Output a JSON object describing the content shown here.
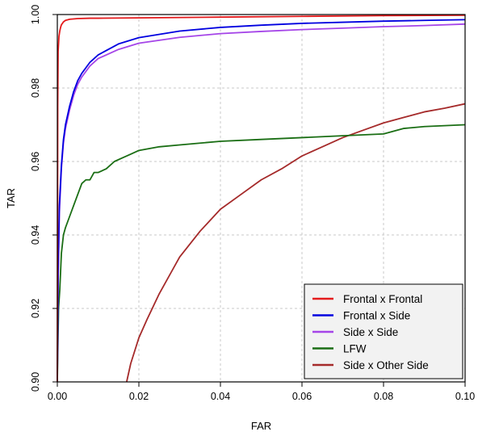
{
  "chart_data": {
    "type": "line",
    "title": "",
    "xlabel": "FAR",
    "ylabel": "TAR",
    "xlim": [
      0,
      0.1
    ],
    "ylim": [
      0.9,
      1.0
    ],
    "xticks": [
      0,
      0.02,
      0.04,
      0.06,
      0.08,
      0.1
    ],
    "xtick_labels": [
      "0.00",
      "0.02",
      "0.04",
      "0.06",
      "0.08",
      "0.10"
    ],
    "yticks": [
      0.9,
      0.92,
      0.94,
      0.96,
      0.98,
      1.0
    ],
    "ytick_labels": [
      "0.90",
      "0.92",
      "0.94",
      "0.96",
      "0.98",
      "1.00"
    ],
    "grid": true,
    "legend_position": "bottom-right",
    "series": [
      {
        "name": "Frontal x Frontal",
        "color": "#e41a1c",
        "x": [
          0.0,
          0.0001,
          0.0002,
          0.0004,
          0.0006,
          0.0008,
          0.001,
          0.0015,
          0.002,
          0.003,
          0.005,
          0.008,
          0.01,
          0.02,
          0.04,
          0.06,
          0.08,
          0.1
        ],
        "y": [
          0.9,
          0.975,
          0.99,
          0.994,
          0.9955,
          0.9965,
          0.9972,
          0.998,
          0.9984,
          0.9987,
          0.9989,
          0.999,
          0.999,
          0.9991,
          0.9993,
          0.9995,
          0.9997,
          0.9998
        ]
      },
      {
        "name": "Frontal x Side",
        "color": "#0000e0",
        "x": [
          0.0,
          0.0002,
          0.0005,
          0.001,
          0.0015,
          0.002,
          0.003,
          0.004,
          0.005,
          0.006,
          0.008,
          0.01,
          0.015,
          0.02,
          0.03,
          0.04,
          0.05,
          0.06,
          0.07,
          0.08,
          0.09,
          0.1
        ],
        "y": [
          0.9,
          0.93,
          0.948,
          0.959,
          0.966,
          0.97,
          0.975,
          0.979,
          0.982,
          0.984,
          0.987,
          0.989,
          0.992,
          0.9937,
          0.9955,
          0.9965,
          0.9971,
          0.9976,
          0.9979,
          0.9982,
          0.9984,
          0.9986
        ]
      },
      {
        "name": "Side x Side",
        "color": "#a545e8",
        "x": [
          0.0,
          0.0002,
          0.0005,
          0.001,
          0.0015,
          0.002,
          0.003,
          0.004,
          0.005,
          0.006,
          0.008,
          0.01,
          0.015,
          0.02,
          0.03,
          0.04,
          0.05,
          0.06,
          0.07,
          0.08,
          0.09,
          0.1
        ],
        "y": [
          0.9,
          0.928,
          0.946,
          0.958,
          0.965,
          0.969,
          0.974,
          0.978,
          0.981,
          0.983,
          0.986,
          0.988,
          0.9905,
          0.9922,
          0.9938,
          0.9948,
          0.9954,
          0.9959,
          0.9963,
          0.9967,
          0.997,
          0.9974
        ]
      },
      {
        "name": "LFW",
        "color": "#1a6e14",
        "x": [
          0.0,
          0.0003,
          0.0006,
          0.001,
          0.0015,
          0.002,
          0.003,
          0.004,
          0.005,
          0.006,
          0.007,
          0.008,
          0.009,
          0.01,
          0.012,
          0.014,
          0.016,
          0.018,
          0.02,
          0.025,
          0.03,
          0.035,
          0.04,
          0.05,
          0.06,
          0.07,
          0.08,
          0.085,
          0.09,
          0.1
        ],
        "y": [
          0.9,
          0.92,
          0.925,
          0.935,
          0.94,
          0.942,
          0.945,
          0.948,
          0.951,
          0.954,
          0.955,
          0.955,
          0.957,
          0.957,
          0.958,
          0.96,
          0.961,
          0.962,
          0.963,
          0.964,
          0.9645,
          0.965,
          0.9655,
          0.966,
          0.9665,
          0.967,
          0.9675,
          0.969,
          0.9695,
          0.97
        ]
      },
      {
        "name": "Side x Other Side",
        "color": "#a52a2a",
        "x": [
          0.017,
          0.018,
          0.02,
          0.022,
          0.025,
          0.028,
          0.03,
          0.035,
          0.04,
          0.045,
          0.05,
          0.055,
          0.06,
          0.065,
          0.07,
          0.075,
          0.08,
          0.085,
          0.09,
          0.095,
          0.1
        ],
        "y": [
          0.9,
          0.905,
          0.912,
          0.917,
          0.924,
          0.93,
          0.934,
          0.941,
          0.947,
          0.951,
          0.955,
          0.958,
          0.9615,
          0.964,
          0.9665,
          0.9685,
          0.9705,
          0.972,
          0.9735,
          0.9745,
          0.9757
        ]
      }
    ]
  }
}
